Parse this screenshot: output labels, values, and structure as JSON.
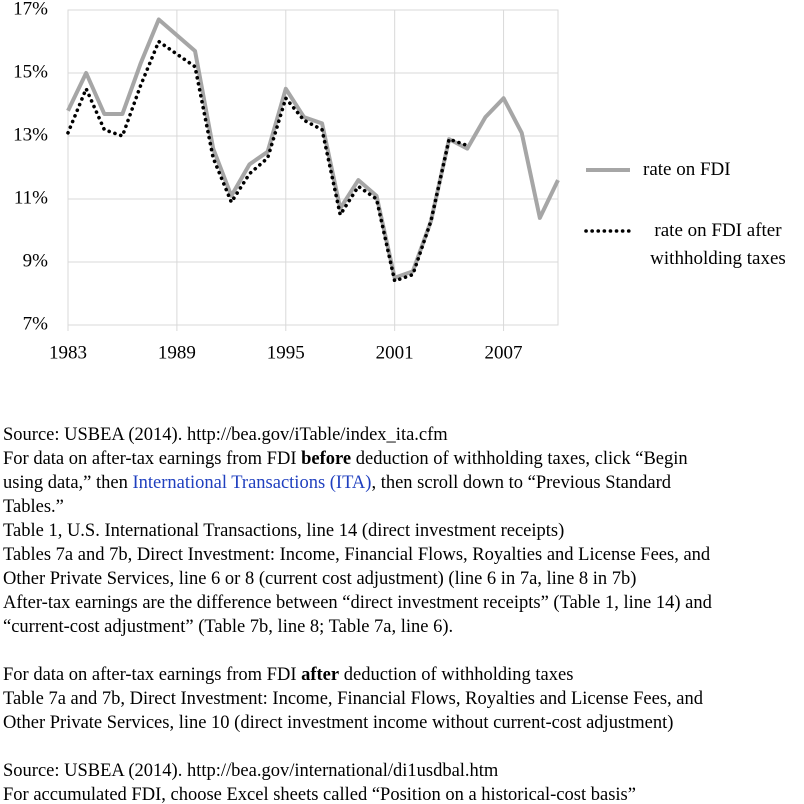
{
  "chart_data": {
    "type": "line",
    "x": [
      1983,
      1984,
      1985,
      1986,
      1987,
      1988,
      1989,
      1990,
      1991,
      1992,
      1993,
      1994,
      1995,
      1996,
      1997,
      1998,
      1999,
      2000,
      2001,
      2002,
      2003,
      2004,
      2005,
      2006,
      2007,
      2008,
      2009,
      2010
    ],
    "series": [
      {
        "name": "rate on FDI",
        "color": "#a6a6a6",
        "style": "solid",
        "values": [
          13.8,
          15.0,
          13.7,
          13.7,
          15.3,
          16.7,
          16.2,
          15.7,
          12.6,
          11.1,
          12.1,
          12.5,
          14.5,
          13.6,
          13.4,
          10.7,
          11.6,
          11.1,
          8.5,
          8.7,
          10.3,
          12.9,
          12.6,
          13.6,
          14.2,
          13.1,
          10.4,
          11.6
        ]
      },
      {
        "name": "rate on FDI after withholding taxes",
        "color": "#000000",
        "style": "dotted",
        "values": [
          13.1,
          14.5,
          13.2,
          13.0,
          14.6,
          16.0,
          15.6,
          15.2,
          12.3,
          10.9,
          11.8,
          12.3,
          14.2,
          13.5,
          13.2,
          10.5,
          11.4,
          11.0,
          8.4,
          8.6,
          10.3,
          12.9,
          12.7,
          null,
          null,
          null,
          null,
          null
        ]
      }
    ],
    "xlim": [
      1983,
      2010
    ],
    "xticks": [
      1983,
      1989,
      1995,
      2001,
      2007
    ],
    "ylim": [
      7,
      17
    ],
    "yticks": [
      {
        "value": 7,
        "label": "7%"
      },
      {
        "value": 9,
        "label": "9%"
      },
      {
        "value": 11,
        "label": "11%"
      },
      {
        "value": 13,
        "label": "13%"
      },
      {
        "value": 15,
        "label": "15%"
      },
      {
        "value": 17,
        "label": "17%"
      }
    ],
    "grid": true,
    "legend": "right"
  },
  "notes": [
    [
      [
        "Source: USBEA (2014). http://bea.gov/iTable/index_ita.cfm"
      ],
      [
        "For data on after-tax earnings from FDI ",
        {
          "text": "before",
          "style": "bold"
        },
        " deduction of withholding taxes, click “Begin"
      ],
      [
        "using data,” then ",
        {
          "text": "International Transactions (ITA)",
          "style": "link"
        },
        ", then scroll down to “Previous Standard"
      ],
      [
        "Tables.”"
      ],
      [
        "Table 1, U.S. International Transactions, line 14 (direct investment receipts)"
      ],
      [
        "Tables 7a and 7b, Direct Investment: Income, Financial Flows, Royalties and License Fees, and"
      ],
      [
        "Other Private Services, line 6 or 8 (current cost adjustment) (line 6 in 7a, line 8 in 7b)"
      ],
      [
        "After-tax earnings are the difference between “direct investment receipts” (Table 1, line 14) and"
      ],
      [
        "“current-cost adjustment” (Table 7b, line 8; Table 7a, line 6)."
      ]
    ],
    [
      [
        "For data on after-tax earnings from FDI ",
        {
          "text": "after",
          "style": "bold"
        },
        " deduction of withholding taxes"
      ],
      [
        "Table 7a and 7b, Direct Investment: Income, Financial Flows, Royalties and License Fees, and"
      ],
      [
        "Other Private Services, line 10 (direct investment income without current-cost adjustment)"
      ]
    ],
    [
      [
        "Source: USBEA (2014). http://bea.gov/international/di1usdbal.htm"
      ],
      [
        "For accumulated FDI, choose Excel sheets called “Position on a historical-cost basis”"
      ]
    ]
  ]
}
